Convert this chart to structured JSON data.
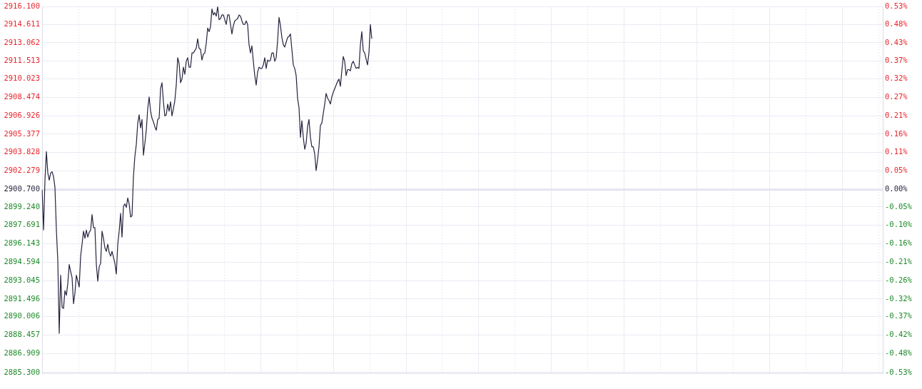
{
  "chart_data": {
    "type": "line",
    "categories": [
      null,
      null,
      null,
      null,
      null,
      null,
      null,
      null,
      null,
      null,
      null,
      null,
      null,
      null,
      null,
      null,
      null,
      null,
      null,
      null,
      null,
      null,
      null,
      null,
      null,
      null,
      null,
      null,
      null,
      null,
      null,
      null,
      null,
      null,
      null,
      null,
      null,
      null,
      null,
      null,
      null,
      null,
      null,
      null,
      null,
      null,
      null,
      null,
      null,
      null,
      null,
      null,
      null,
      null,
      null,
      null,
      null,
      null,
      null,
      null,
      null,
      null,
      null,
      null,
      null,
      null,
      null,
      null,
      null,
      null,
      null,
      null,
      null,
      null,
      null,
      null,
      null,
      null,
      null,
      null,
      null,
      null,
      null,
      null,
      null,
      null,
      null,
      null,
      null,
      null,
      null,
      null,
      null,
      null,
      null,
      null,
      null,
      null,
      null,
      null,
      null,
      null,
      null,
      null,
      null,
      null,
      null,
      null,
      null,
      null,
      null,
      null,
      null,
      null,
      null,
      null,
      null,
      null,
      null,
      null,
      null,
      null,
      null,
      null,
      null,
      null,
      null,
      null,
      null,
      null,
      null,
      null,
      null,
      null,
      null,
      null,
      null,
      null,
      null,
      null,
      null,
      null,
      null,
      null,
      null,
      null,
      null,
      null,
      null,
      null,
      null,
      null,
      null,
      null,
      null,
      null,
      null,
      null,
      null,
      null,
      null,
      null,
      null,
      null,
      null,
      null,
      null,
      null,
      null,
      null,
      null,
      null,
      null,
      null,
      null,
      null,
      null,
      null,
      null,
      null,
      null,
      null,
      null,
      null,
      null,
      null,
      null,
      null,
      null,
      null,
      null,
      null,
      null,
      null,
      null,
      null,
      null,
      null,
      null,
      null,
      null,
      null,
      null,
      null,
      null,
      null,
      null,
      null,
      null,
      null,
      null,
      null,
      null,
      null,
      null,
      null,
      null,
      null,
      null,
      null,
      null,
      null,
      null,
      null,
      null,
      null,
      null,
      null,
      null,
      null,
      null,
      null,
      null,
      null,
      null,
      null,
      null,
      null,
      null,
      null,
      null,
      null,
      null,
      null,
      null,
      null,
      null,
      null,
      null,
      null,
      null,
      null,
      null,
      null,
      null,
      null,
      null,
      null,
      null,
      null,
      null,
      null,
      null,
      null,
      null,
      null,
      null,
      null,
      null,
      null,
      null,
      null,
      null,
      null,
      null,
      null,
      null,
      null,
      null,
      null,
      null,
      null,
      null,
      null,
      null,
      null,
      null,
      null,
      null,
      null,
      null,
      null,
      null,
      null,
      null,
      null,
      null,
      null,
      null,
      null,
      null,
      null,
      null,
      null,
      null,
      null,
      null,
      null,
      null,
      null,
      null,
      null,
      null,
      null,
      null,
      null,
      null,
      null,
      null,
      null,
      null,
      null,
      null,
      null,
      null,
      null,
      null,
      null,
      null,
      null,
      null,
      null,
      null,
      null,
      null,
      null,
      null,
      null,
      null,
      null,
      null,
      null,
      null,
      null,
      null,
      null,
      null,
      null,
      null,
      null,
      null,
      null,
      null,
      null,
      null,
      null,
      null,
      null,
      null,
      null,
      null,
      null,
      null,
      null,
      null,
      null,
      null,
      null,
      null,
      null,
      null,
      null,
      null,
      null,
      null,
      null,
      null,
      null,
      null,
      null,
      null,
      null,
      null,
      null,
      null,
      null,
      null,
      null,
      null,
      null,
      null,
      null,
      null,
      null,
      null,
      null,
      null,
      null,
      null,
      null,
      null,
      null,
      null,
      null,
      null,
      null,
      null,
      null,
      null,
      null,
      null,
      null,
      null,
      null,
      null,
      null,
      null,
      null,
      null,
      null,
      null,
      null,
      null,
      null,
      null,
      null,
      null,
      null,
      null,
      null,
      null,
      null,
      null,
      null,
      null,
      null,
      null,
      null,
      null,
      null,
      null,
      null,
      null,
      null,
      null,
      null,
      null,
      null,
      null,
      null,
      null,
      null,
      null,
      null,
      null,
      null,
      null,
      null,
      null,
      null,
      null,
      null,
      null,
      null,
      null,
      null,
      null,
      null,
      null,
      null,
      null,
      null,
      null,
      null,
      null,
      null,
      null,
      null,
      null,
      null,
      null,
      null,
      null,
      null,
      null,
      null,
      null,
      null,
      null,
      null,
      null,
      null,
      null,
      null,
      null,
      null,
      null,
      null,
      null,
      null,
      null,
      null,
      null,
      null,
      null,
      null,
      null,
      null,
      null,
      null,
      null,
      null,
      null,
      null,
      null,
      null,
      null,
      null,
      null,
      null,
      null,
      null,
      null,
      null,
      null,
      null,
      null,
      null,
      null,
      null,
      null,
      null,
      null,
      null,
      null,
      null,
      null,
      null,
      null,
      null,
      null,
      null,
      null,
      null,
      null,
      null,
      null,
      null,
      null,
      null,
      null,
      null,
      null,
      null,
      null,
      null,
      null,
      null,
      null,
      null,
      null,
      null,
      null,
      null,
      null,
      null,
      null,
      null,
      null,
      null,
      null,
      null,
      null,
      null,
      null,
      null,
      null,
      null,
      null,
      null,
      null,
      null,
      null,
      null,
      null,
      null,
      null,
      null,
      null,
      null
    ],
    "values": [
      2900.7,
      2897.3,
      2901.5,
      2903.9,
      2902.1,
      2901.5,
      2902.1,
      2902.2,
      2901.8,
      2900.9,
      2897.3,
      2894.7,
      2888.6,
      2893.5,
      2890.8,
      2890.7,
      2892.2,
      2891.8,
      2892.8,
      2894.4,
      2893.8,
      2893.3,
      2891.1,
      2892.0,
      2893.5,
      2893.0,
      2892.5,
      2895.1,
      2896.1,
      2897.2,
      2896.6,
      2897.3,
      2896.7,
      2897.1,
      2897.3,
      2898.6,
      2897.5,
      2897.5,
      2894.4,
      2893.0,
      2894.2,
      2894.5,
      2897.2,
      2896.6,
      2895.8,
      2895.5,
      2896.1,
      2895.4,
      2895.1,
      2895.5,
      2895.0,
      2894.5,
      2893.6,
      2896.1,
      2897.2,
      2898.7,
      2896.7,
      2899.3,
      2899.5,
      2899.2,
      2900.0,
      2899.5,
      2898.4,
      2898.5,
      2901.8,
      2903.5,
      2904.5,
      2906.3,
      2907.0,
      2905.9,
      2906.6,
      2903.6,
      2904.6,
      2905.7,
      2907.5,
      2908.5,
      2907.3,
      2906.7,
      2906.4,
      2906.0,
      2905.7,
      2906.6,
      2906.7,
      2909.2,
      2909.7,
      2908.1,
      2906.9,
      2907.0,
      2907.9,
      2907.3,
      2908.1,
      2906.9,
      2907.5,
      2908.2,
      2909.5,
      2911.8,
      2911.3,
      2909.7,
      2910.0,
      2911.0,
      2910.4,
      2911.5,
      2911.8,
      2911.0,
      2911.0,
      2912.2,
      2912.2,
      2912.4,
      2912.6,
      2913.4,
      2912.6,
      2912.5,
      2911.6,
      2912.1,
      2912.2,
      2913.0,
      2914.3,
      2914.0,
      2914.4,
      2915.9,
      2915.4,
      2915.6,
      2915.3,
      2916.1,
      2915.0,
      2915.1,
      2915.4,
      2915.4,
      2915.0,
      2914.6,
      2915.4,
      2915.4,
      2914.6,
      2913.8,
      2914.5,
      2914.9,
      2915.0,
      2915.1,
      2915.4,
      2915.3,
      2914.9,
      2914.6,
      2914.6,
      2914.9,
      2914.6,
      2912.9,
      2912.2,
      2912.8,
      2911.5,
      2910.3,
      2909.5,
      2910.6,
      2911.0,
      2910.9,
      2910.9,
      2911.2,
      2911.8,
      2910.9,
      2911.6,
      2911.5,
      2911.6,
      2912.2,
      2912.2,
      2911.5,
      2911.8,
      2913.2,
      2915.2,
      2914.5,
      2913.5,
      2912.9,
      2912.7,
      2913.1,
      2913.5,
      2913.6,
      2913.8,
      2912.5,
      2911.2,
      2910.9,
      2910.3,
      2908.4,
      2907.6,
      2905.1,
      2906.5,
      2905.1,
      2904.1,
      2904.6,
      2906.0,
      2906.6,
      2905.1,
      2904.3,
      2904.3,
      2903.7,
      2902.3,
      2903.2,
      2904.3,
      2906.1,
      2906.3,
      2907.1,
      2907.9,
      2908.8,
      2908.4,
      2908.2,
      2907.9,
      2908.5,
      2908.9,
      2909.2,
      2909.5,
      2909.8,
      2910.0,
      2909.4,
      2910.7,
      2911.9,
      2911.5,
      2910.3,
      2910.8,
      2910.8,
      2910.7,
      2911.3,
      2911.5,
      2911.2,
      2910.9,
      2911.0,
      2910.9,
      2912.9,
      2914.0,
      2912.4,
      2912.2,
      2911.7,
      2911.2,
      2912.2,
      2914.6,
      2913.4,
      null,
      null,
      null,
      null,
      null,
      null,
      null,
      null,
      null,
      null,
      null,
      null,
      null,
      null,
      null,
      null,
      null,
      null,
      null,
      null,
      null,
      null,
      null,
      null,
      null,
      null,
      null,
      null,
      null,
      null,
      null,
      null,
      null,
      null,
      null,
      null,
      null,
      null,
      null,
      null,
      null,
      null,
      null,
      null,
      null,
      null,
      null,
      null,
      null,
      null,
      null,
      null,
      null,
      null,
      null,
      null,
      null,
      null,
      null,
      null,
      null,
      null,
      null,
      null,
      null,
      null,
      null,
      null,
      null,
      null,
      null,
      null,
      null,
      null,
      null,
      null,
      null,
      null,
      null,
      null,
      null,
      null,
      null,
      null,
      null,
      null,
      null,
      null,
      null,
      null,
      null,
      null,
      null,
      null,
      null,
      null,
      null,
      null,
      null,
      null,
      null,
      null,
      null,
      null,
      null,
      null,
      null,
      null,
      null,
      null,
      null,
      null,
      null,
      null,
      null,
      null,
      null,
      null,
      null,
      null,
      null,
      null,
      null,
      null,
      null,
      null,
      null,
      null,
      null,
      null,
      null,
      null,
      null,
      null,
      null,
      null,
      null,
      null,
      null,
      null,
      null,
      null,
      null,
      null,
      null,
      null,
      null,
      null,
      null,
      null,
      null,
      null,
      null,
      null,
      null,
      null,
      null,
      null,
      null,
      null,
      null,
      null,
      null,
      null,
      null,
      null,
      null,
      null,
      null,
      null,
      null,
      null,
      null,
      null,
      null,
      null,
      null,
      null,
      null,
      null,
      null,
      null,
      null,
      null,
      null,
      null,
      null,
      null,
      null,
      null,
      null,
      null,
      null,
      null,
      null,
      null,
      null,
      null,
      null,
      null,
      null,
      null,
      null,
      null,
      null,
      null,
      null,
      null,
      null,
      null,
      null,
      null,
      null,
      null,
      null,
      null,
      null,
      null,
      null,
      null,
      null,
      null,
      null,
      null,
      null,
      null,
      null,
      null,
      null,
      null,
      null,
      null,
      null,
      null,
      null,
      null,
      null,
      null,
      null,
      null,
      null,
      null,
      null,
      null,
      null,
      null,
      null,
      null,
      null,
      null,
      null,
      null,
      null,
      null,
      null,
      null,
      null,
      null,
      null,
      null,
      null,
      null,
      null,
      null,
      null,
      null,
      null,
      null,
      null,
      null,
      null,
      null,
      null,
      null,
      null,
      null,
      null,
      null,
      null,
      null,
      null,
      null,
      null,
      null,
      null,
      null,
      null,
      null,
      null,
      null,
      null,
      null,
      null,
      null,
      null,
      null,
      null,
      null,
      null,
      null,
      null,
      null,
      null,
      null,
      null,
      null,
      null,
      null,
      null,
      null,
      null,
      null,
      null,
      null,
      null,
      null,
      null,
      null,
      null,
      null,
      null,
      null,
      null,
      null,
      null,
      null,
      null,
      null,
      null,
      null,
      null,
      null,
      null,
      null,
      null,
      null,
      null,
      null,
      null,
      null,
      null,
      null,
      null,
      null,
      null,
      null,
      null,
      null,
      null,
      null,
      null,
      null,
      null,
      null,
      null,
      null,
      null,
      null
    ],
    "color": "#23233d",
    "ylim": [
      2885.3,
      2916.1
    ],
    "yticks": [
      {
        "value": 2885.3,
        "label": "2885.300"
      },
      {
        "value": 2886.909,
        "label": "2886.909"
      },
      {
        "value": 2888.457,
        "label": "2888.457"
      },
      {
        "value": 2890.006,
        "label": "2890.006"
      },
      {
        "value": 2891.496,
        "label": "2891.496"
      },
      {
        "value": 2893.045,
        "label": "2893.045"
      },
      {
        "value": 2894.594,
        "label": "2894.594"
      },
      {
        "value": 2896.143,
        "label": "2896.143"
      },
      {
        "value": 2897.691,
        "label": "2897.691"
      },
      {
        "value": 2899.24,
        "label": "2899.240"
      },
      {
        "value": 2900.7,
        "label": "2900.700"
      },
      {
        "value": 2902.279,
        "label": "2902.279"
      },
      {
        "value": 2903.828,
        "label": "2903.828"
      },
      {
        "value": 2905.377,
        "label": "2905.377"
      },
      {
        "value": 2906.926,
        "label": "2906.926"
      },
      {
        "value": 2908.474,
        "label": "2908.474"
      },
      {
        "value": 2910.023,
        "label": "2910.023"
      },
      {
        "value": 2911.513,
        "label": "2911.513"
      },
      {
        "value": 2913.062,
        "label": "2913.062"
      },
      {
        "value": 2914.611,
        "label": "2914.611"
      },
      {
        "value": 2916.1,
        "label": "2916.100"
      }
    ],
    "y2lim": [
      -0.5309,
      0.5309
    ],
    "y2ticks": [
      {
        "value": -0.5309,
        "label": "-0.53%"
      },
      {
        "value": -0.4754,
        "label": "-0.48%"
      },
      {
        "value": -0.4221,
        "label": "-0.42%"
      },
      {
        "value": -0.3687,
        "label": "-0.37%"
      },
      {
        "value": -0.3173,
        "label": "-0.32%"
      },
      {
        "value": -0.2639,
        "label": "-0.26%"
      },
      {
        "value": -0.2105,
        "label": "-0.21%"
      },
      {
        "value": -0.1571,
        "label": "-0.16%"
      },
      {
        "value": -0.1037,
        "label": "-0.10%"
      },
      {
        "value": -0.0503,
        "label": "-0.05%"
      },
      {
        "value": 0,
        "label": "0.00%"
      },
      {
        "value": 0.0544,
        "label": "0.05%"
      },
      {
        "value": 0.1078,
        "label": "0.11%"
      },
      {
        "value": 0.1612,
        "label": "0.16%"
      },
      {
        "value": 0.2146,
        "label": "0.21%"
      },
      {
        "value": 0.268,
        "label": "0.27%"
      },
      {
        "value": 0.3214,
        "label": "0.32%"
      },
      {
        "value": 0.3728,
        "label": "0.37%"
      },
      {
        "value": 0.4262,
        "label": "0.43%"
      },
      {
        "value": 0.4796,
        "label": "0.48%"
      },
      {
        "value": 0.5309,
        "label": "0.53%"
      }
    ],
    "ref_lines": [
      {
        "axis": "y",
        "value": 2900.7,
        "color": "#e4e4f0"
      }
    ],
    "grid": true,
    "marker": "none",
    "tick_labels": "y"
  }
}
